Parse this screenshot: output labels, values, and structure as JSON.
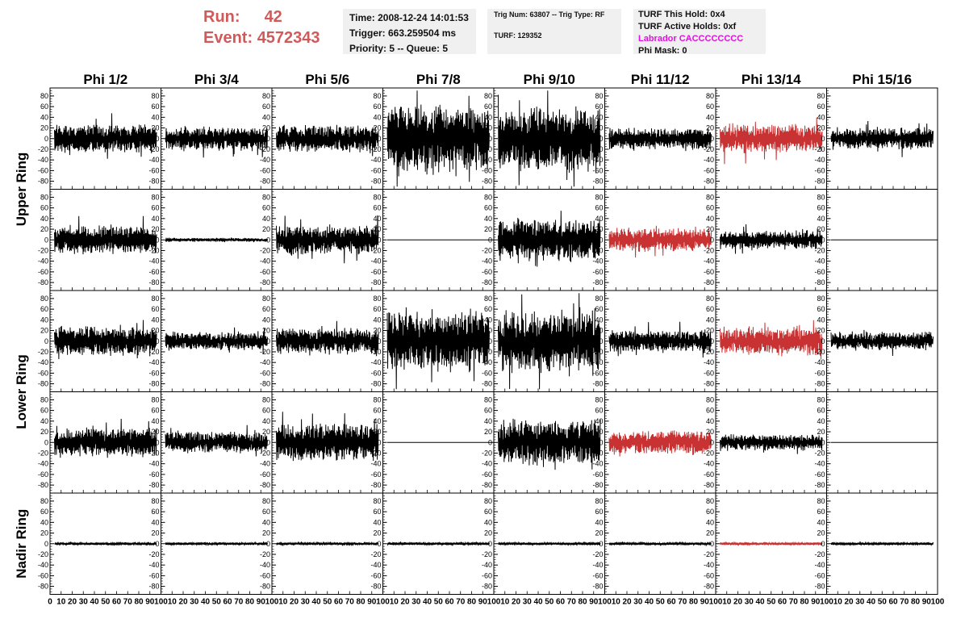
{
  "header": {
    "run_label": "Run:",
    "run_value": "42",
    "event_label": "Event:",
    "event_value": "4572343"
  },
  "info_box_1": {
    "time": "Time: 2008-12-24 14:01:53",
    "trigger": "Trigger: 663.259504 ms",
    "priority": "Priority: 5 -- Queue: 5"
  },
  "info_box_2": {
    "trig": "Trig Num: 63807 -- Trig Type: RF",
    "turf": "TURF: 129352"
  },
  "info_box_3": {
    "hold": "TURF This Hold: 0x4",
    "active": "TURF Active Holds: 0xf",
    "labrador": "Labrador CACCCCCCCC",
    "phimask": "Phi Mask: 0"
  },
  "chart_data": {
    "type": "line",
    "columns": [
      "Phi 1/2",
      "Phi 3/4",
      "Phi 5/6",
      "Phi 7/8",
      "Phi 9/10",
      "Phi 11/12",
      "Phi 13/14",
      "Phi 15/16"
    ],
    "ring_labels": [
      {
        "text": "Upper Ring",
        "rows": [
          0,
          1
        ]
      },
      {
        "text": "Lower Ring",
        "rows": [
          2,
          3
        ]
      },
      {
        "text": "Nadir Ring",
        "rows": [
          4
        ]
      }
    ],
    "ylim": [
      -95,
      95
    ],
    "yticks": [
      "80",
      "60",
      "40",
      "20",
      "0",
      "-20",
      "-40",
      "-60",
      "-80"
    ],
    "xlim": [
      0,
      100
    ],
    "xticks_first": [
      "0",
      "10",
      "20",
      "30",
      "40",
      "50",
      "60",
      "70",
      "80",
      "90",
      "100"
    ],
    "xticks_other": [
      "10",
      "20",
      "30",
      "40",
      "50",
      "60",
      "70",
      "80",
      "90",
      "100"
    ],
    "trace_color": "#000000",
    "highlight_color": "#c83232",
    "traces": [
      [
        {
          "amplitude": 22,
          "color": "#000000"
        },
        {
          "amplitude": 18,
          "color": "#000000"
        },
        {
          "amplitude": 20,
          "color": "#000000"
        },
        {
          "amplitude": 50,
          "color": "#000000"
        },
        {
          "amplitude": 50,
          "color": "#000000"
        },
        {
          "amplitude": 16,
          "color": "#000000"
        },
        {
          "amplitude": 22,
          "color": "#c83232"
        },
        {
          "amplitude": 16,
          "color": "#000000"
        }
      ],
      [
        {
          "amplitude": 22,
          "color": "#000000"
        },
        {
          "amplitude": 3,
          "color": "#000000"
        },
        {
          "amplitude": 22,
          "color": "#000000"
        },
        {
          "amplitude": 0,
          "color": "#000000"
        },
        {
          "amplitude": 32,
          "color": "#000000"
        },
        {
          "amplitude": 18,
          "color": "#c83232"
        },
        {
          "amplitude": 14,
          "color": "#000000"
        },
        {
          "amplitude": 0,
          "color": "#000000"
        }
      ],
      [
        {
          "amplitude": 22,
          "color": "#000000"
        },
        {
          "amplitude": 14,
          "color": "#000000"
        },
        {
          "amplitude": 20,
          "color": "#000000"
        },
        {
          "amplitude": 45,
          "color": "#000000"
        },
        {
          "amplitude": 48,
          "color": "#000000"
        },
        {
          "amplitude": 16,
          "color": "#000000"
        },
        {
          "amplitude": 22,
          "color": "#c83232"
        },
        {
          "amplitude": 14,
          "color": "#000000"
        }
      ],
      [
        {
          "amplitude": 22,
          "color": "#000000"
        },
        {
          "amplitude": 16,
          "color": "#000000"
        },
        {
          "amplitude": 28,
          "color": "#000000"
        },
        {
          "amplitude": 0,
          "color": "#000000"
        },
        {
          "amplitude": 35,
          "color": "#000000"
        },
        {
          "amplitude": 18,
          "color": "#c83232"
        },
        {
          "amplitude": 12,
          "color": "#000000"
        },
        {
          "amplitude": 0,
          "color": "#000000"
        }
      ],
      [
        {
          "amplitude": 2,
          "color": "#000000"
        },
        {
          "amplitude": 2,
          "color": "#000000"
        },
        {
          "amplitude": 2,
          "color": "#000000"
        },
        {
          "amplitude": 2,
          "color": "#000000"
        },
        {
          "amplitude": 2,
          "color": "#000000"
        },
        {
          "amplitude": 2,
          "color": "#000000"
        },
        {
          "amplitude": 2,
          "color": "#c83232"
        },
        {
          "amplitude": 2,
          "color": "#000000"
        }
      ]
    ]
  }
}
